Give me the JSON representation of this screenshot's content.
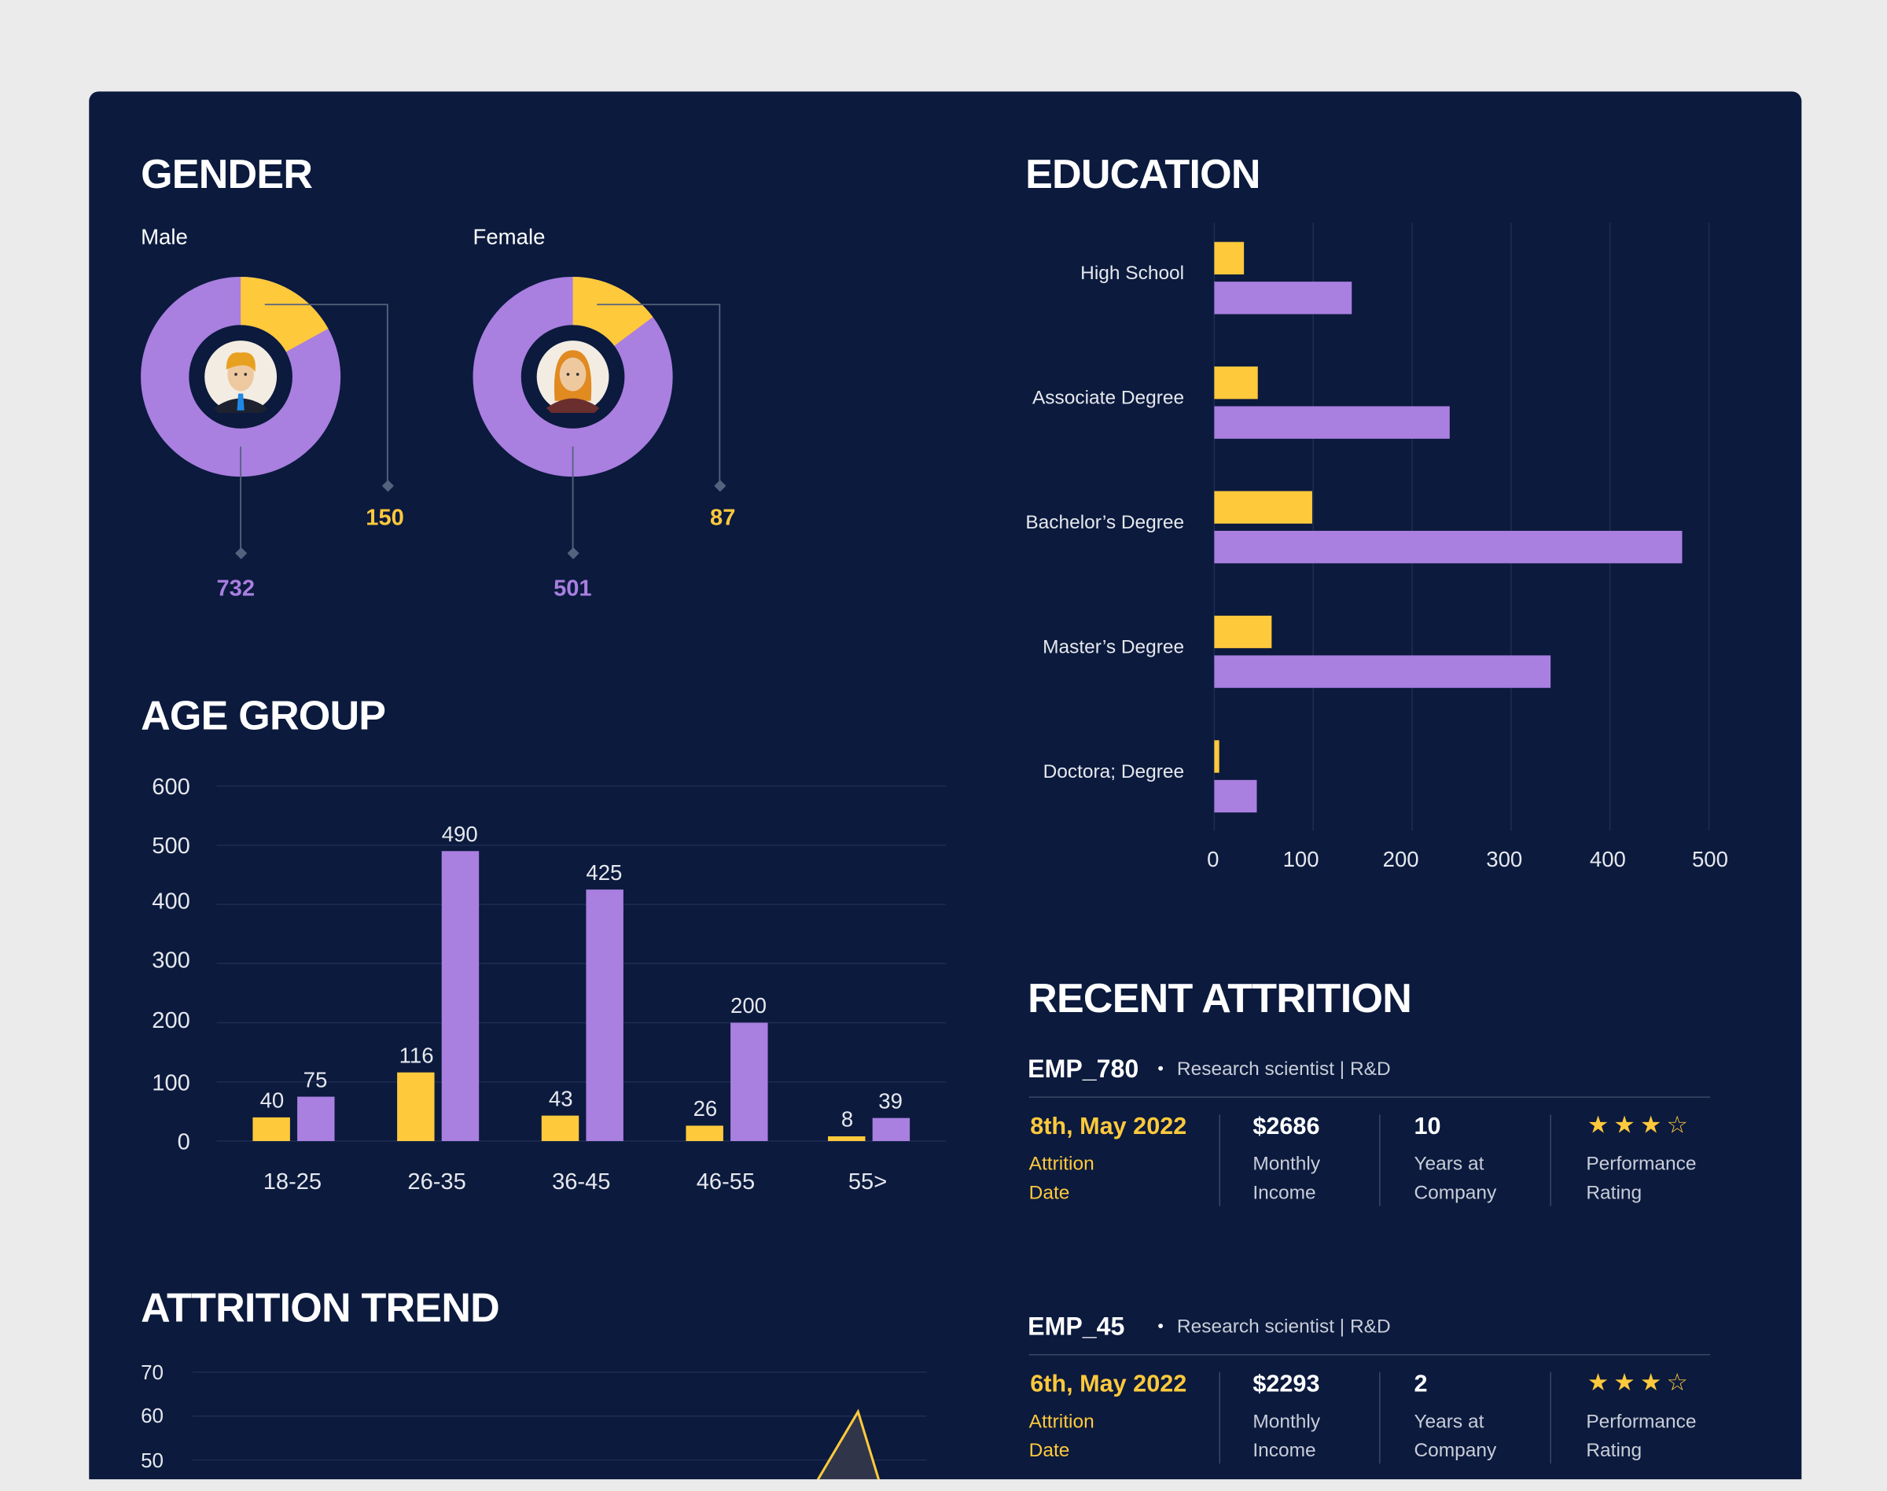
{
  "colors": {
    "background": "#0b1a3d",
    "attrition": "#ffc93c",
    "active": "#a97fe0",
    "grid": "#1e2d52"
  },
  "gender": {
    "title": "GENDER",
    "male": {
      "label": "Male",
      "avatar": "male-avatar-icon",
      "attrition": 150,
      "active": 732,
      "attrition_label": "150",
      "active_label": "732"
    },
    "female": {
      "label": "Female",
      "avatar": "female-avatar-icon",
      "attrition": 87,
      "active": 501,
      "attrition_label": "87",
      "active_label": "501"
    }
  },
  "age_group": {
    "title": "AGE GROUP"
  },
  "attrition_trend": {
    "title": "ATTRITION TREND"
  },
  "education": {
    "title": "EDUCATION"
  },
  "chart_data": [
    {
      "type": "bar",
      "id": "age",
      "categories": [
        "18-25",
        "26-35",
        "36-45",
        "46-55",
        "55>"
      ],
      "series": [
        {
          "values": [
            40,
            116,
            43,
            26,
            8
          ]
        },
        {
          "values": [
            75,
            490,
            425,
            200,
            39
          ]
        }
      ],
      "ylim": [
        0,
        600
      ],
      "yticks": [
        "0",
        "100",
        "200",
        "300",
        "400",
        "500",
        "600"
      ],
      "grid": true
    },
    {
      "type": "bar",
      "id": "education",
      "orientation": "horizontal",
      "categories": [
        "High School",
        "Associate Degree",
        "Bachelor’s Degree",
        "Master’s Degree",
        "Doctora; Degree"
      ],
      "series": [
        {
          "values": [
            30,
            44,
            99,
            58,
            5
          ]
        },
        {
          "values": [
            139,
            238,
            473,
            340,
            43
          ]
        }
      ],
      "xlim": [
        0,
        500
      ],
      "xticks": [
        "0",
        "100",
        "200",
        "300",
        "400",
        "500"
      ],
      "grid": true
    },
    {
      "type": "area",
      "id": "trend",
      "yticks": [
        "70",
        "60",
        "50"
      ],
      "ylim": [
        45,
        70
      ],
      "visible_peak": 61,
      "grid": true
    }
  ],
  "recent_attrition": {
    "title": "RECENT ATTRITION",
    "employees": [
      {
        "id": "EMP_780",
        "role": "Research scientist | R&D",
        "date": "8th, May 2022",
        "date_label_1": "Attrition",
        "date_label_2": "Date",
        "income": "$2686",
        "income_label_1": "Monthly",
        "income_label_2": "Income",
        "years": "10",
        "years_label_1": "Years at",
        "years_label_2": "Company",
        "stars": "★★★☆",
        "rating": 3,
        "rating_max": 4,
        "rating_label_1": "Performance",
        "rating_label_2": "Rating"
      },
      {
        "id": "EMP_45",
        "role": "Research scientist | R&D",
        "date": "6th, May 2022",
        "date_label_1": "Attrition",
        "date_label_2": "Date",
        "income": "$2293",
        "income_label_1": "Monthly",
        "income_label_2": "Income",
        "years": "2",
        "years_label_1": "Years at",
        "years_label_2": "Company",
        "stars": "★★★☆",
        "rating": 3,
        "rating_max": 4,
        "rating_label_1": "Performance",
        "rating_label_2": "Rating"
      }
    ]
  }
}
